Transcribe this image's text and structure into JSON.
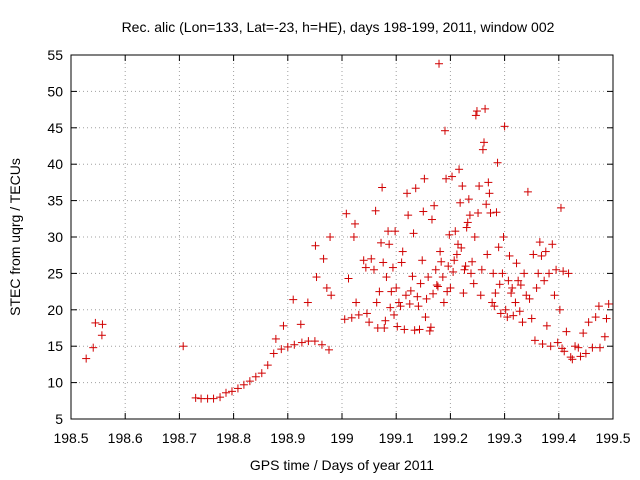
{
  "chart_data": {
    "type": "scatter",
    "title": "Rec. alic (Lon=133, Lat=-23, h=HE), days 198-199, 2011, window 002",
    "xlabel": "GPS time / Days of year 2011",
    "ylabel": "STEC from uqrg / TECUs",
    "xlim": [
      198.5,
      199.5
    ],
    "ylim": [
      5,
      55
    ],
    "grid": true,
    "marker": "plus",
    "marker_color": "#d00000",
    "x_ticks": [
      198.5,
      198.6,
      198.7,
      198.8,
      198.9,
      199.0,
      199.1,
      199.2,
      199.3,
      199.4,
      199.5
    ],
    "x_tick_labels": [
      "198.5",
      "198.6",
      "198.7",
      "198.8",
      "198.9",
      "199",
      "199.1",
      "199.2",
      "199.3",
      "199.4",
      "199.5"
    ],
    "y_ticks": [
      5,
      10,
      15,
      20,
      25,
      30,
      35,
      40,
      45,
      50,
      55
    ],
    "y_tick_labels": [
      "5",
      "10",
      "15",
      "20",
      "25",
      "30",
      "35",
      "40",
      "45",
      "50",
      "55"
    ],
    "points": [
      [
        198.528,
        13.3
      ],
      [
        198.541,
        14.8
      ],
      [
        198.545,
        18.2
      ],
      [
        198.557,
        16.5
      ],
      [
        198.558,
        18.0
      ],
      [
        198.707,
        15.0
      ],
      [
        198.73,
        7.9
      ],
      [
        198.74,
        7.8
      ],
      [
        198.752,
        7.8
      ],
      [
        198.763,
        7.8
      ],
      [
        198.775,
        8.0
      ],
      [
        198.786,
        8.6
      ],
      [
        198.797,
        8.8
      ],
      [
        198.808,
        9.2
      ],
      [
        198.819,
        9.7
      ],
      [
        198.83,
        10.2
      ],
      [
        198.841,
        10.8
      ],
      [
        198.852,
        11.3
      ],
      [
        198.863,
        12.4
      ],
      [
        198.874,
        14.0
      ],
      [
        198.878,
        16.0
      ],
      [
        198.888,
        14.6
      ],
      [
        198.892,
        17.8
      ],
      [
        198.9,
        14.9
      ],
      [
        198.91,
        21.4
      ],
      [
        198.912,
        15.2
      ],
      [
        198.924,
        18.0
      ],
      [
        198.926,
        15.5
      ],
      [
        198.937,
        21.0
      ],
      [
        198.938,
        15.7
      ],
      [
        198.95,
        15.7
      ],
      [
        198.951,
        28.8
      ],
      [
        198.953,
        24.5
      ],
      [
        198.963,
        15.2
      ],
      [
        198.966,
        27.0
      ],
      [
        198.972,
        23.0
      ],
      [
        198.976,
        14.5
      ],
      [
        198.978,
        30.0
      ],
      [
        198.98,
        22.0
      ],
      [
        199.005,
        18.7
      ],
      [
        199.008,
        33.2
      ],
      [
        199.012,
        24.3
      ],
      [
        199.018,
        18.9
      ],
      [
        199.022,
        30.0
      ],
      [
        199.024,
        31.8
      ],
      [
        199.026,
        21.0
      ],
      [
        199.031,
        19.3
      ],
      [
        199.04,
        26.8
      ],
      [
        199.044,
        25.8
      ],
      [
        199.046,
        19.5
      ],
      [
        199.05,
        18.3
      ],
      [
        199.054,
        27.0
      ],
      [
        199.059,
        25.5
      ],
      [
        199.062,
        33.6
      ],
      [
        199.064,
        21.0
      ],
      [
        199.066,
        17.5
      ],
      [
        199.069,
        22.5
      ],
      [
        199.072,
        29.2
      ],
      [
        199.074,
        36.8
      ],
      [
        199.076,
        26.5
      ],
      [
        199.078,
        17.5
      ],
      [
        199.08,
        18.5
      ],
      [
        199.082,
        24.5
      ],
      [
        199.085,
        30.8
      ],
      [
        199.087,
        29.0
      ],
      [
        199.089,
        20.3
      ],
      [
        199.091,
        22.5
      ],
      [
        199.094,
        25.8
      ],
      [
        199.096,
        19.3
      ],
      [
        199.098,
        30.8
      ],
      [
        199.1,
        23.0
      ],
      [
        199.102,
        17.7
      ],
      [
        199.105,
        21.0
      ],
      [
        199.108,
        20.5
      ],
      [
        199.11,
        26.5
      ],
      [
        199.112,
        28.0
      ],
      [
        199.115,
        17.3
      ],
      [
        199.118,
        22.0
      ],
      [
        199.12,
        36.0
      ],
      [
        199.122,
        33.0
      ],
      [
        199.125,
        20.8
      ],
      [
        199.127,
        22.6
      ],
      [
        199.13,
        24.6
      ],
      [
        199.132,
        30.5
      ],
      [
        199.134,
        17.2
      ],
      [
        199.136,
        36.7
      ],
      [
        199.139,
        21.8
      ],
      [
        199.141,
        20.5
      ],
      [
        199.143,
        17.3
      ],
      [
        199.145,
        23.6
      ],
      [
        199.148,
        26.8
      ],
      [
        199.15,
        33.5
      ],
      [
        199.152,
        38.0
      ],
      [
        199.154,
        19.0
      ],
      [
        199.156,
        21.5
      ],
      [
        199.159,
        24.5
      ],
      [
        199.162,
        17.1
      ],
      [
        199.164,
        17.6
      ],
      [
        199.166,
        32.4
      ],
      [
        199.168,
        22.2
      ],
      [
        199.17,
        34.3
      ],
      [
        199.173,
        25.5
      ],
      [
        199.175,
        23.4
      ],
      [
        199.177,
        23.2
      ],
      [
        199.179,
        53.8
      ],
      [
        199.181,
        28.0
      ],
      [
        199.183,
        26.6
      ],
      [
        199.186,
        24.5
      ],
      [
        199.188,
        21.0
      ],
      [
        199.19,
        44.6
      ],
      [
        199.192,
        38.0
      ],
      [
        199.194,
        22.5
      ],
      [
        199.196,
        26.0
      ],
      [
        199.198,
        30.3
      ],
      [
        199.2,
        23.0
      ],
      [
        199.203,
        38.3
      ],
      [
        199.205,
        25.2
      ],
      [
        199.207,
        26.8
      ],
      [
        199.209,
        30.8
      ],
      [
        199.212,
        27.6
      ],
      [
        199.214,
        29.0
      ],
      [
        199.216,
        39.3
      ],
      [
        199.218,
        34.7
      ],
      [
        199.22,
        28.5
      ],
      [
        199.222,
        37.0
      ],
      [
        199.224,
        22.3
      ],
      [
        199.226,
        25.5
      ],
      [
        199.228,
        26.0
      ],
      [
        199.23,
        31.3
      ],
      [
        199.232,
        32.0
      ],
      [
        199.234,
        35.2
      ],
      [
        199.236,
        33.0
      ],
      [
        199.238,
        25.0
      ],
      [
        199.24,
        26.6
      ],
      [
        199.243,
        23.6
      ],
      [
        199.245,
        30.0
      ],
      [
        199.247,
        46.7
      ],
      [
        199.249,
        47.3
      ],
      [
        199.251,
        33.3
      ],
      [
        199.253,
        37.0
      ],
      [
        199.256,
        22.0
      ],
      [
        199.258,
        25.5
      ],
      [
        199.26,
        42.0
      ],
      [
        199.262,
        43.0
      ],
      [
        199.264,
        47.6
      ],
      [
        199.266,
        34.5
      ],
      [
        199.268,
        27.6
      ],
      [
        199.27,
        37.5
      ],
      [
        199.272,
        36.0
      ],
      [
        199.274,
        33.3
      ],
      [
        199.277,
        21.0
      ],
      [
        199.279,
        25.0
      ],
      [
        199.281,
        20.5
      ],
      [
        199.283,
        22.3
      ],
      [
        199.285,
        33.4
      ],
      [
        199.287,
        40.2
      ],
      [
        199.289,
        28.6
      ],
      [
        199.291,
        23.5
      ],
      [
        199.293,
        19.5
      ],
      [
        199.296,
        25.0
      ],
      [
        199.298,
        30.0
      ],
      [
        199.3,
        45.2
      ],
      [
        199.302,
        20.0
      ],
      [
        199.305,
        19.0
      ],
      [
        199.307,
        24.0
      ],
      [
        199.309,
        27.4
      ],
      [
        199.312,
        22.3
      ],
      [
        199.314,
        23.0
      ],
      [
        199.316,
        19.2
      ],
      [
        199.32,
        21.0
      ],
      [
        199.322,
        26.4
      ],
      [
        199.325,
        24.0
      ],
      [
        199.328,
        19.8
      ],
      [
        199.33,
        23.4
      ],
      [
        199.333,
        18.3
      ],
      [
        199.336,
        25.0
      ],
      [
        199.34,
        22.0
      ],
      [
        199.343,
        36.2
      ],
      [
        199.346,
        21.5
      ],
      [
        199.35,
        18.8
      ],
      [
        199.353,
        27.6
      ],
      [
        199.356,
        15.8
      ],
      [
        199.359,
        23.0
      ],
      [
        199.362,
        25.0
      ],
      [
        199.365,
        29.3
      ],
      [
        199.368,
        27.4
      ],
      [
        199.37,
        15.3
      ],
      [
        199.373,
        24.0
      ],
      [
        199.376,
        28.0
      ],
      [
        199.378,
        17.8
      ],
      [
        199.382,
        25.0
      ],
      [
        199.385,
        15.0
      ],
      [
        199.388,
        29.0
      ],
      [
        199.392,
        22.0
      ],
      [
        199.395,
        25.5
      ],
      [
        199.398,
        15.5
      ],
      [
        199.402,
        20.0
      ],
      [
        199.404,
        34.0
      ],
      [
        199.406,
        14.7
      ],
      [
        199.408,
        25.3
      ],
      [
        199.41,
        14.3
      ],
      [
        199.414,
        17.0
      ],
      [
        199.418,
        25.0
      ],
      [
        199.422,
        13.5
      ],
      [
        199.425,
        13.2
      ],
      [
        199.43,
        15.0
      ],
      [
        199.436,
        14.8
      ],
      [
        199.44,
        13.6
      ],
      [
        199.445,
        16.8
      ],
      [
        199.45,
        14.0
      ],
      [
        199.455,
        18.3
      ],
      [
        199.462,
        14.8
      ],
      [
        199.468,
        19.0
      ],
      [
        199.474,
        20.5
      ],
      [
        199.476,
        14.8
      ],
      [
        199.485,
        16.3
      ],
      [
        199.488,
        18.8
      ],
      [
        199.492,
        20.8
      ]
    ]
  }
}
